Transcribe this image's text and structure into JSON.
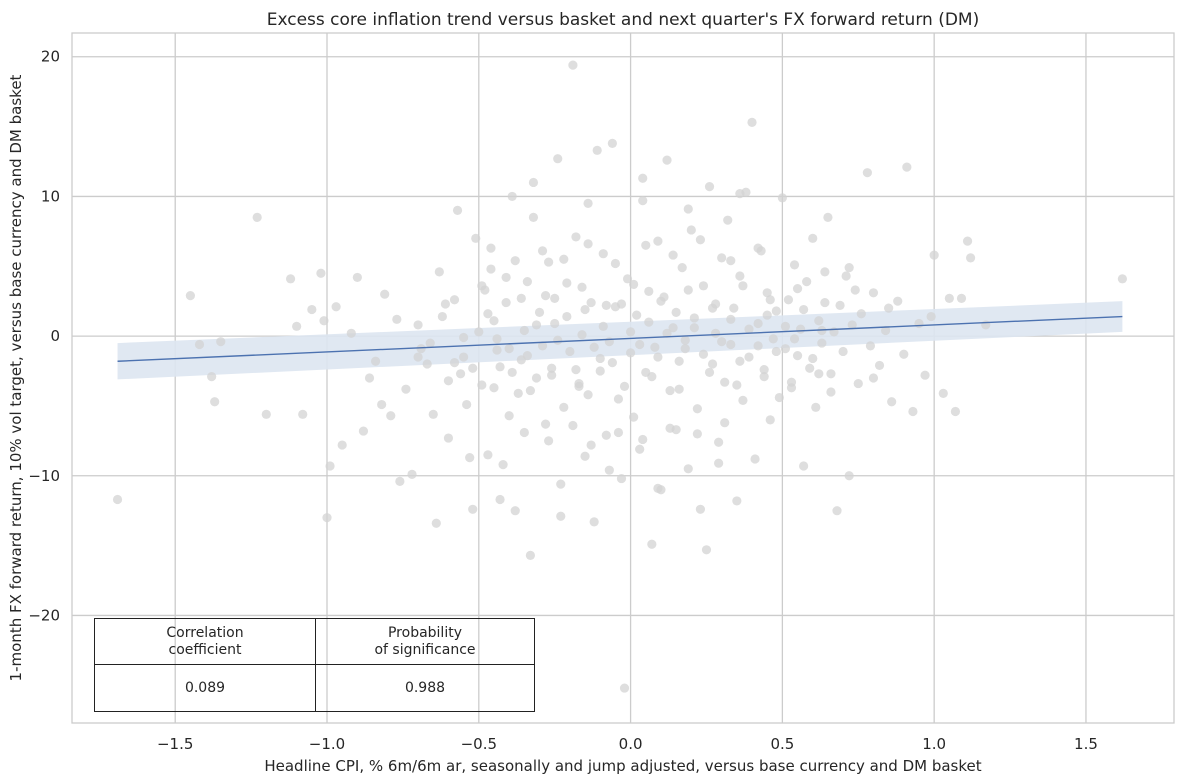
{
  "chart_data": {
    "type": "scatter",
    "title": "Excess core inflation trend versus basket and next quarter's FX forward return (DM)",
    "xlabel": "Headline CPI, % 6m/6m ar, seasonally and jump adjusted, versus base currency and DM basket",
    "ylabel": "1-month FX forward return, 10% vol target, versus base currency and DM basket",
    "xlim": [
      -1.84,
      1.79
    ],
    "ylim": [
      -27.7,
      21.7
    ],
    "x_ticks": [
      -1.5,
      -1.0,
      -0.5,
      0.0,
      0.5,
      1.0,
      1.5
    ],
    "x_tick_labels": [
      "−1.5",
      "−1.0",
      "−0.5",
      "0.0",
      "0.5",
      "1.0",
      "1.5"
    ],
    "y_ticks": [
      -20,
      -10,
      0,
      10,
      20
    ],
    "y_tick_labels": [
      "−20",
      "−10",
      "0",
      "10",
      "20"
    ],
    "grid": true,
    "point_color": "#d3d3d3",
    "line_color": "#4c72b0",
    "band_color": "#dde5f1",
    "regression": {
      "x_start": -1.69,
      "y_start": -1.8,
      "x_end": 1.62,
      "y_end": 1.4,
      "band_lower_start": -3.1,
      "band_upper_start": -0.5,
      "band_lower_end": 0.3,
      "band_upper_end": 2.5
    },
    "points": [
      [
        -1.69,
        -11.7
      ],
      [
        -1.45,
        2.9
      ],
      [
        -1.42,
        -0.6
      ],
      [
        -1.38,
        -2.9
      ],
      [
        -1.37,
        -4.7
      ],
      [
        -1.35,
        -0.4
      ],
      [
        -1.23,
        8.5
      ],
      [
        -1.2,
        -5.6
      ],
      [
        -1.12,
        4.1
      ],
      [
        -1.1,
        0.7
      ],
      [
        -1.08,
        -5.6
      ],
      [
        -1.05,
        1.9
      ],
      [
        -1.02,
        4.5
      ],
      [
        -1.01,
        1.1
      ],
      [
        -1.0,
        -13.0
      ],
      [
        -0.99,
        -9.3
      ],
      [
        -0.97,
        2.1
      ],
      [
        -0.95,
        -7.8
      ],
      [
        -0.92,
        0.2
      ],
      [
        -0.9,
        4.2
      ],
      [
        -0.88,
        -6.8
      ],
      [
        -0.86,
        -3.0
      ],
      [
        -0.84,
        -1.8
      ],
      [
        -0.82,
        -4.9
      ],
      [
        -0.81,
        3.0
      ],
      [
        -0.79,
        -5.7
      ],
      [
        -0.77,
        1.2
      ],
      [
        -0.76,
        -10.4
      ],
      [
        -0.74,
        -3.8
      ],
      [
        -0.72,
        -9.9
      ],
      [
        -0.7,
        0.8
      ],
      [
        -0.69,
        -0.9
      ],
      [
        -0.67,
        -2.0
      ],
      [
        -0.66,
        -0.5
      ],
      [
        -0.65,
        -5.6
      ],
      [
        -0.64,
        -13.4
      ],
      [
        -0.63,
        4.6
      ],
      [
        -0.61,
        2.3
      ],
      [
        -0.6,
        -7.3
      ],
      [
        -0.58,
        -1.9
      ],
      [
        -0.57,
        9.0
      ],
      [
        -0.56,
        -2.7
      ],
      [
        -0.55,
        -1.5
      ],
      [
        -0.53,
        -8.7
      ],
      [
        -0.52,
        -12.4
      ],
      [
        -0.51,
        7.0
      ],
      [
        -0.5,
        0.3
      ],
      [
        -0.49,
        -3.5
      ],
      [
        -0.48,
        3.3
      ],
      [
        -0.47,
        -8.5
      ],
      [
        -0.46,
        6.3
      ],
      [
        -0.45,
        1.1
      ],
      [
        -0.44,
        -0.2
      ],
      [
        -0.43,
        -2.2
      ],
      [
        -0.42,
        -9.2
      ],
      [
        -0.41,
        4.2
      ],
      [
        -0.4,
        -0.9
      ],
      [
        -0.39,
        10.0
      ],
      [
        -0.38,
        -12.5
      ],
      [
        -0.37,
        -4.1
      ],
      [
        -0.36,
        2.7
      ],
      [
        -0.35,
        0.4
      ],
      [
        -0.34,
        -1.4
      ],
      [
        -0.33,
        -15.7
      ],
      [
        -0.32,
        8.5
      ],
      [
        -0.31,
        -3.0
      ],
      [
        -0.3,
        1.7
      ],
      [
        -0.29,
        -0.7
      ],
      [
        -0.28,
        -6.3
      ],
      [
        -0.27,
        5.3
      ],
      [
        -0.26,
        -2.3
      ],
      [
        -0.25,
        0.9
      ],
      [
        -0.24,
        12.7
      ],
      [
        -0.23,
        -12.9
      ],
      [
        -0.22,
        -5.1
      ],
      [
        -0.21,
        3.8
      ],
      [
        -0.2,
        -1.1
      ],
      [
        -0.19,
        19.4
      ],
      [
        -0.18,
        7.1
      ],
      [
        -0.17,
        -3.6
      ],
      [
        -0.16,
        0.1
      ],
      [
        -0.15,
        -8.6
      ],
      [
        -0.14,
        -4.2
      ],
      [
        -0.13,
        2.4
      ],
      [
        -0.12,
        -13.3
      ],
      [
        -0.11,
        13.3
      ],
      [
        -0.1,
        -1.6
      ],
      [
        -0.09,
        5.9
      ],
      [
        -0.08,
        -7.1
      ],
      [
        -0.07,
        -0.4
      ],
      [
        -0.06,
        13.8
      ],
      [
        -0.05,
        2.1
      ],
      [
        -0.04,
        -4.5
      ],
      [
        -0.03,
        -10.2
      ],
      [
        -0.02,
        -25.2
      ],
      [
        -0.01,
        4.1
      ],
      [
        0.0,
        -1.2
      ],
      [
        0.01,
        -5.8
      ],
      [
        0.02,
        1.5
      ],
      [
        0.03,
        -8.1
      ],
      [
        0.04,
        9.7
      ],
      [
        0.05,
        -2.6
      ],
      [
        0.06,
        3.2
      ],
      [
        0.07,
        -14.9
      ],
      [
        0.08,
        -0.8
      ],
      [
        0.09,
        6.8
      ],
      [
        0.1,
        -11.0
      ],
      [
        0.11,
        2.8
      ],
      [
        0.12,
        12.6
      ],
      [
        0.13,
        -3.9
      ],
      [
        0.14,
        0.6
      ],
      [
        0.15,
        -6.7
      ],
      [
        0.16,
        -1.8
      ],
      [
        0.17,
        4.9
      ],
      [
        0.18,
        -0.3
      ],
      [
        0.19,
        -9.5
      ],
      [
        0.2,
        7.6
      ],
      [
        0.21,
        1.3
      ],
      [
        0.22,
        -5.2
      ],
      [
        0.23,
        -12.4
      ],
      [
        0.24,
        3.6
      ],
      [
        0.25,
        -15.3
      ],
      [
        0.26,
        10.7
      ],
      [
        0.27,
        -2.0
      ],
      [
        0.28,
        0.2
      ],
      [
        0.29,
        -7.6
      ],
      [
        0.3,
        5.6
      ],
      [
        0.31,
        -3.3
      ],
      [
        0.32,
        8.3
      ],
      [
        0.33,
        -0.6
      ],
      [
        0.34,
        2.0
      ],
      [
        0.35,
        -11.8
      ],
      [
        0.36,
        4.3
      ],
      [
        0.37,
        -4.6
      ],
      [
        0.38,
        10.3
      ],
      [
        0.39,
        -1.5
      ],
      [
        0.4,
        15.3
      ],
      [
        0.41,
        -8.8
      ],
      [
        0.42,
        0.9
      ],
      [
        0.43,
        6.1
      ],
      [
        0.44,
        -2.9
      ],
      [
        0.45,
        3.1
      ],
      [
        0.46,
        -6.0
      ],
      [
        0.47,
        -0.2
      ],
      [
        0.48,
        1.8
      ],
      [
        0.49,
        -4.4
      ],
      [
        0.5,
        9.9
      ],
      [
        0.51,
        -0.9
      ],
      [
        0.52,
        2.6
      ],
      [
        0.53,
        -3.7
      ],
      [
        0.54,
        5.1
      ],
      [
        0.55,
        -1.4
      ],
      [
        0.56,
        0.5
      ],
      [
        0.57,
        -9.3
      ],
      [
        0.58,
        3.9
      ],
      [
        0.59,
        -2.3
      ],
      [
        0.6,
        7.0
      ],
      [
        0.61,
        -5.1
      ],
      [
        0.62,
        1.1
      ],
      [
        0.63,
        -0.5
      ],
      [
        0.64,
        4.6
      ],
      [
        0.65,
        8.5
      ],
      [
        0.66,
        -2.7
      ],
      [
        0.67,
        0.3
      ],
      [
        0.68,
        -12.5
      ],
      [
        0.69,
        2.2
      ],
      [
        0.7,
        -1.1
      ],
      [
        0.71,
        4.3
      ],
      [
        0.72,
        -10.0
      ],
      [
        0.73,
        0.8
      ],
      [
        0.75,
        -3.4
      ],
      [
        0.76,
        1.6
      ],
      [
        0.78,
        11.7
      ],
      [
        0.79,
        -0.7
      ],
      [
        0.8,
        3.1
      ],
      [
        0.82,
        -2.1
      ],
      [
        0.84,
        0.4
      ],
      [
        0.86,
        -4.7
      ],
      [
        0.88,
        2.5
      ],
      [
        0.9,
        -1.3
      ],
      [
        0.91,
        12.1
      ],
      [
        0.93,
        -5.4
      ],
      [
        0.95,
        0.9
      ],
      [
        0.97,
        -2.8
      ],
      [
        0.99,
        1.4
      ],
      [
        1.0,
        5.8
      ],
      [
        1.03,
        -4.1
      ],
      [
        1.05,
        2.7
      ],
      [
        1.07,
        -5.4
      ],
      [
        1.09,
        2.7
      ],
      [
        1.11,
        6.8
      ],
      [
        1.12,
        5.6
      ],
      [
        1.17,
        0.8
      ],
      [
        1.62,
        4.1
      ],
      [
        -0.55,
        -0.1
      ],
      [
        -0.47,
        1.6
      ],
      [
        -0.44,
        -1.0
      ],
      [
        -0.36,
        -1.7
      ],
      [
        -0.31,
        0.8
      ],
      [
        -0.28,
        2.9
      ],
      [
        -0.24,
        -0.3
      ],
      [
        -0.21,
        1.4
      ],
      [
        -0.18,
        -2.4
      ],
      [
        -0.15,
        1.9
      ],
      [
        -0.12,
        -0.8
      ],
      [
        -0.09,
        0.7
      ],
      [
        -0.06,
        -1.9
      ],
      [
        -0.03,
        2.3
      ],
      [
        0.0,
        0.3
      ],
      [
        0.03,
        -0.6
      ],
      [
        0.06,
        1.0
      ],
      [
        0.09,
        -1.5
      ],
      [
        0.12,
        0.2
      ],
      [
        0.15,
        1.7
      ],
      [
        0.18,
        -0.9
      ],
      [
        0.21,
        0.6
      ],
      [
        0.24,
        -1.3
      ],
      [
        0.27,
        2.0
      ],
      [
        0.3,
        -0.4
      ],
      [
        0.33,
        1.2
      ],
      [
        0.36,
        -1.8
      ],
      [
        0.39,
        0.5
      ],
      [
        0.42,
        -0.7
      ],
      [
        0.45,
        1.5
      ],
      [
        0.48,
        -1.1
      ],
      [
        0.51,
        0.7
      ],
      [
        0.54,
        -0.2
      ],
      [
        0.57,
        1.9
      ],
      [
        0.6,
        -1.6
      ],
      [
        0.63,
        0.4
      ],
      [
        -0.4,
        -5.7
      ],
      [
        -0.35,
        -6.9
      ],
      [
        -0.27,
        -7.5
      ],
      [
        -0.19,
        -6.4
      ],
      [
        -0.13,
        -7.8
      ],
      [
        -0.04,
        -6.9
      ],
      [
        0.04,
        -7.4
      ],
      [
        0.13,
        -6.6
      ],
      [
        0.22,
        -7.0
      ],
      [
        0.31,
        -6.2
      ],
      [
        -0.38,
        5.4
      ],
      [
        -0.29,
        6.1
      ],
      [
        -0.22,
        5.5
      ],
      [
        -0.14,
        6.6
      ],
      [
        -0.05,
        5.2
      ],
      [
        0.05,
        6.5
      ],
      [
        0.14,
        5.8
      ],
      [
        0.23,
        6.9
      ],
      [
        0.33,
        5.4
      ],
      [
        0.42,
        6.3
      ],
      [
        -0.6,
        -3.2
      ],
      [
        -0.52,
        -2.3
      ],
      [
        -0.45,
        -3.7
      ],
      [
        -0.39,
        -2.6
      ],
      [
        -0.33,
        -3.9
      ],
      [
        -0.26,
        -2.8
      ],
      [
        -0.17,
        -3.4
      ],
      [
        -0.1,
        -2.5
      ],
      [
        -0.02,
        -3.6
      ],
      [
        0.07,
        -2.9
      ],
      [
        0.16,
        -3.8
      ],
      [
        0.26,
        -2.6
      ],
      [
        0.35,
        -3.5
      ],
      [
        0.44,
        -2.4
      ],
      [
        0.53,
        -3.3
      ],
      [
        0.62,
        -2.7
      ],
      [
        -0.58,
        2.6
      ],
      [
        -0.49,
        3.6
      ],
      [
        -0.41,
        2.4
      ],
      [
        -0.34,
        3.9
      ],
      [
        -0.25,
        2.7
      ],
      [
        -0.16,
        3.5
      ],
      [
        -0.08,
        2.2
      ],
      [
        0.01,
        3.7
      ],
      [
        0.1,
        2.5
      ],
      [
        0.19,
        3.3
      ],
      [
        0.28,
        2.3
      ],
      [
        0.37,
        3.6
      ],
      [
        0.46,
        2.6
      ],
      [
        0.55,
        3.4
      ],
      [
        0.64,
        2.4
      ],
      [
        0.74,
        3.3
      ],
      [
        -0.43,
        -11.7
      ],
      [
        -0.23,
        -10.6
      ],
      [
        -0.07,
        -9.6
      ],
      [
        0.09,
        -10.9
      ],
      [
        0.29,
        -9.1
      ],
      [
        -0.32,
        11.0
      ],
      [
        -0.14,
        9.5
      ],
      [
        0.04,
        11.3
      ],
      [
        0.19,
        9.1
      ],
      [
        0.36,
        10.2
      ],
      [
        -0.7,
        -1.5
      ],
      [
        -0.62,
        1.4
      ],
      [
        -0.54,
        -4.9
      ],
      [
        -0.46,
        4.8
      ],
      [
        0.66,
        -4.0
      ],
      [
        0.72,
        4.9
      ],
      [
        0.8,
        -3.0
      ],
      [
        0.85,
        2.0
      ]
    ]
  },
  "stats_table": {
    "header_left": "Correlation\ncoefficient",
    "header_right": "Probability\nof significance",
    "value_left": "0.089",
    "value_right": "0.988"
  }
}
